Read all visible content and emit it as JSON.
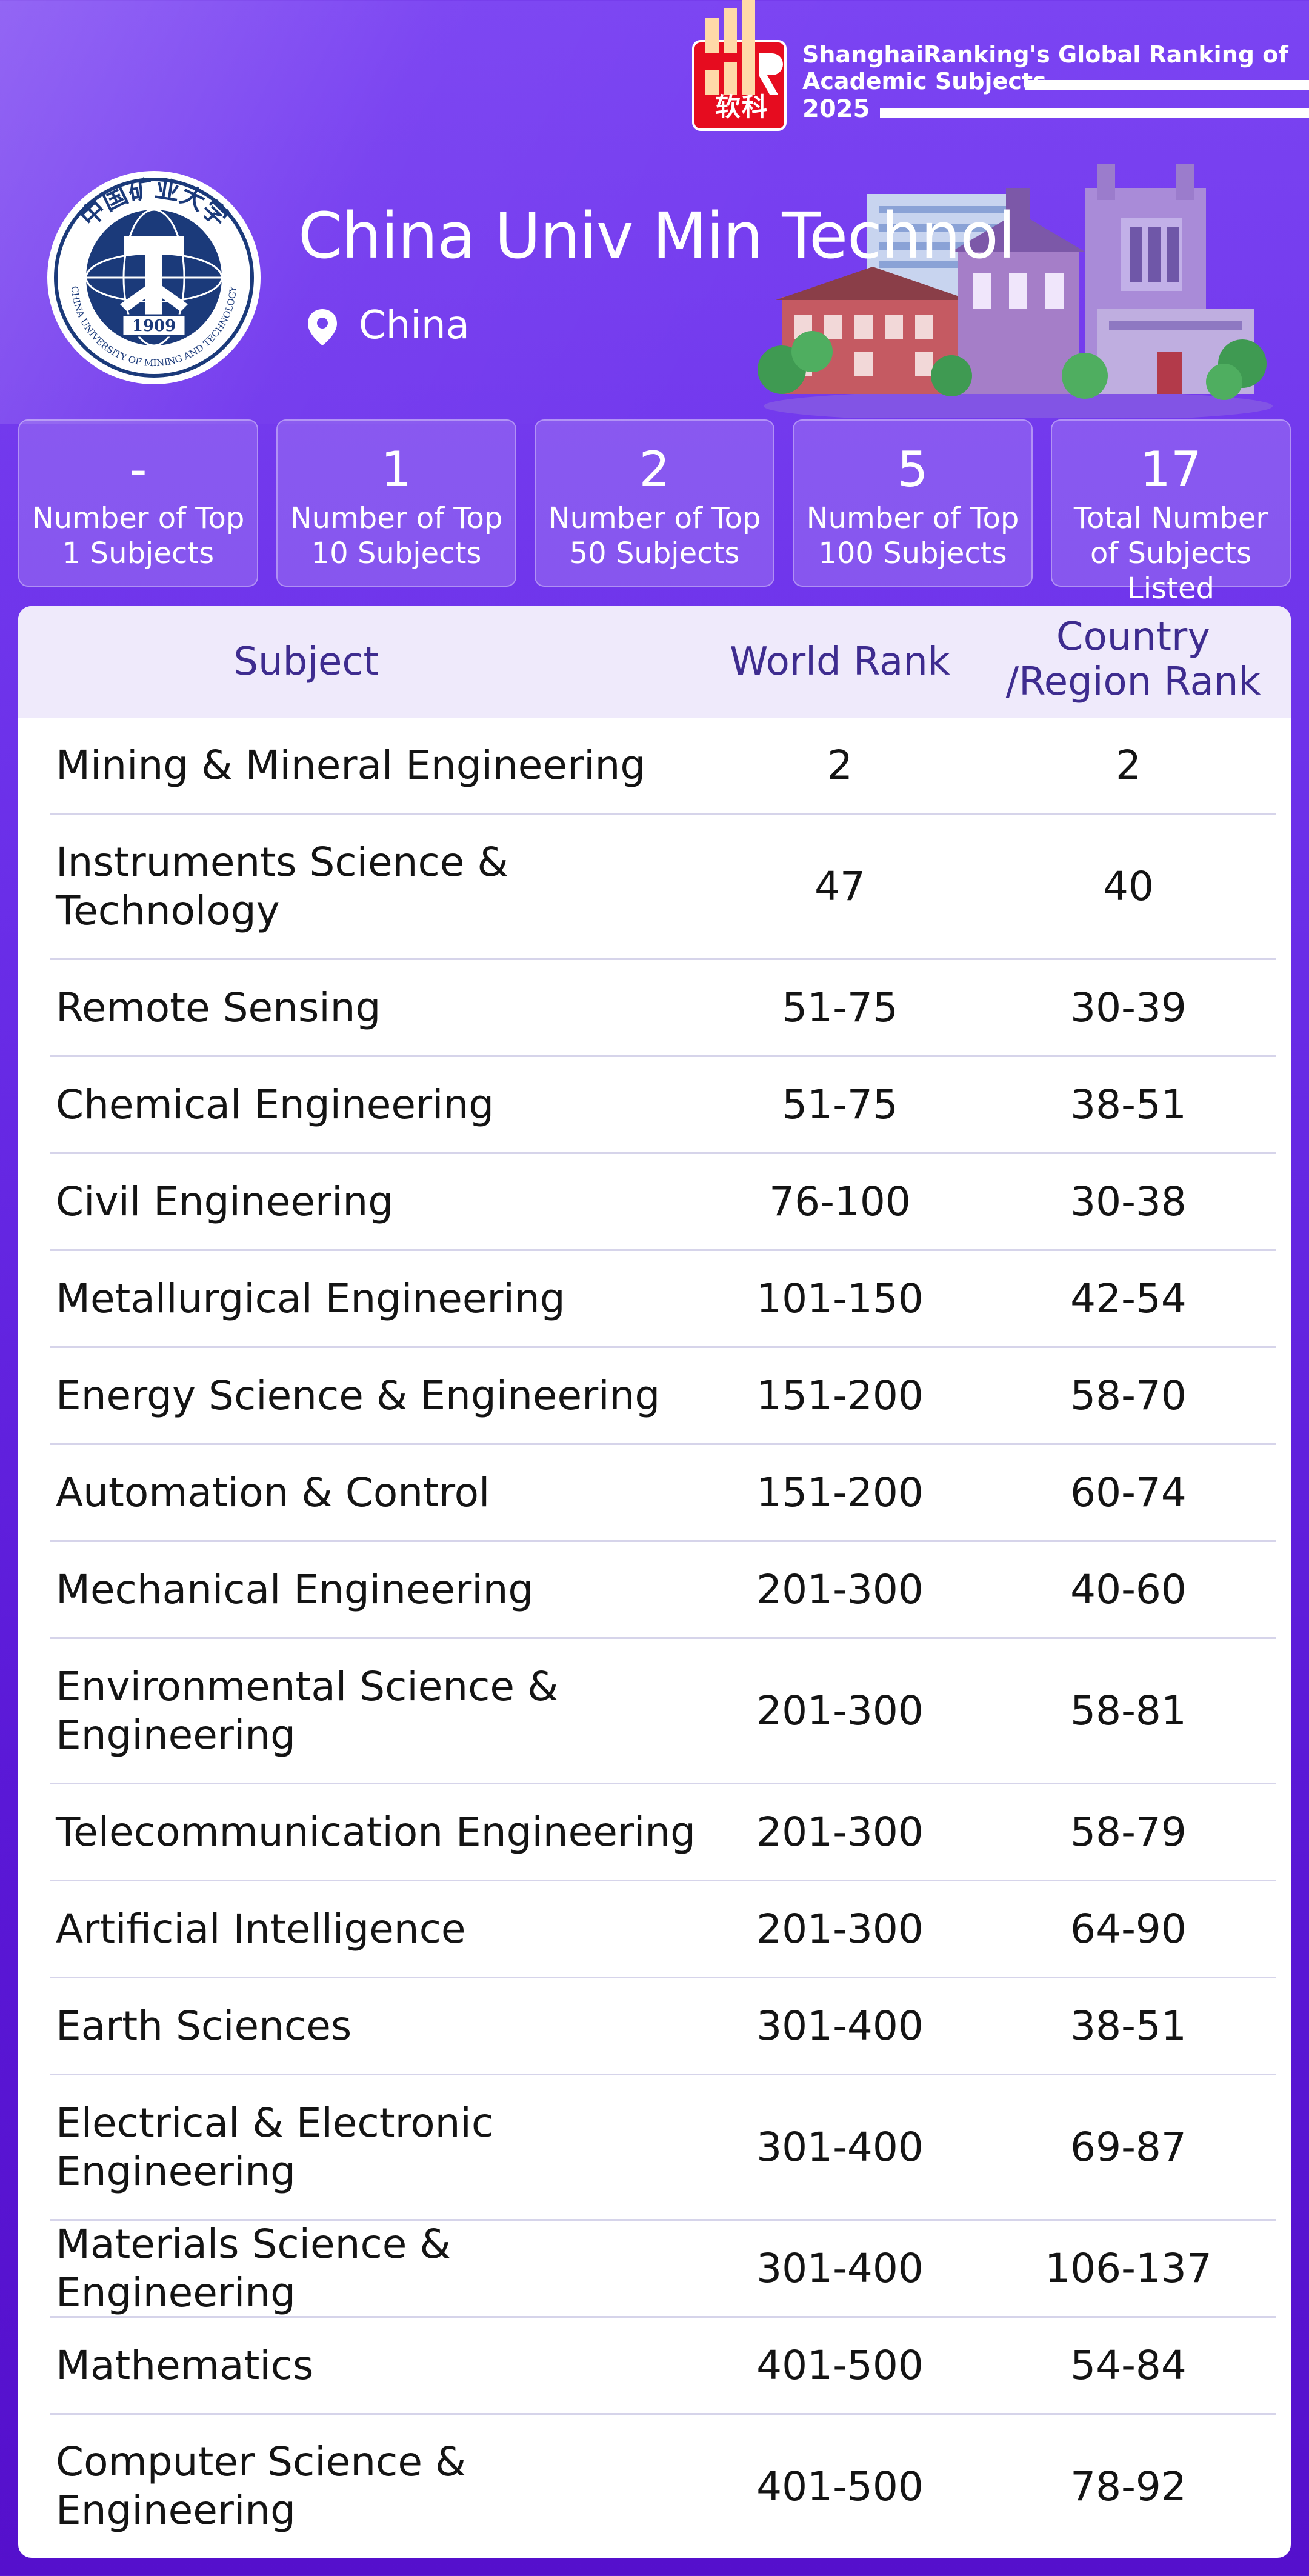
{
  "brand": {
    "logo_text": "软科",
    "line1": "ShanghaiRanking's Global Ranking of",
    "line2": "Academic Subjects",
    "year": "2025"
  },
  "university": {
    "name": "China Univ Min Technol",
    "location": "China",
    "seal_text_top": "中国矿业大学",
    "seal_text_bottom": "CHINA UNIVERSITY OF MINING AND TECHNOLOGY",
    "seal_year": "1909"
  },
  "stats": [
    {
      "value": "-",
      "label": "Number of Top 1 Subjects"
    },
    {
      "value": "1",
      "label": "Number of Top 10 Subjects"
    },
    {
      "value": "2",
      "label": "Number of Top 50 Subjects"
    },
    {
      "value": "5",
      "label": "Number of Top 100 Subjects"
    },
    {
      "value": "17",
      "label": "Total Number of Subjects Listed"
    }
  ],
  "table": {
    "headers": {
      "subject": "Subject",
      "world": "World Rank",
      "country": "Country /Region Rank"
    },
    "rows": [
      {
        "subject": "Mining & Mineral Engineering",
        "world": "2",
        "country": "2"
      },
      {
        "subject": "Instruments Science & Technology",
        "world": "47",
        "country": "40"
      },
      {
        "subject": "Remote Sensing",
        "world": "51-75",
        "country": "30-39"
      },
      {
        "subject": "Chemical Engineering",
        "world": "51-75",
        "country": "38-51"
      },
      {
        "subject": "Civil Engineering",
        "world": "76-100",
        "country": "30-38"
      },
      {
        "subject": "Metallurgical Engineering",
        "world": "101-150",
        "country": "42-54"
      },
      {
        "subject": "Energy Science & Engineering",
        "world": "151-200",
        "country": "58-70"
      },
      {
        "subject": "Automation & Control",
        "world": "151-200",
        "country": "60-74"
      },
      {
        "subject": "Mechanical Engineering",
        "world": "201-300",
        "country": "40-60"
      },
      {
        "subject": "Environmental Science & Engineering",
        "world": "201-300",
        "country": "58-81"
      },
      {
        "subject": "Telecommunication Engineering",
        "world": "201-300",
        "country": "58-79"
      },
      {
        "subject": "Artificial Intelligence",
        "world": "201-300",
        "country": "64-90"
      },
      {
        "subject": "Earth Sciences",
        "world": "301-400",
        "country": "38-51"
      },
      {
        "subject": "Electrical & Electronic Engineering",
        "world": "301-400",
        "country": "69-87"
      },
      {
        "subject": "Materials Science & Engineering",
        "world": "301-400",
        "country": "106-137"
      },
      {
        "subject": "Mathematics",
        "world": "401-500",
        "country": "54-84"
      },
      {
        "subject": "Computer Science & Engineering",
        "world": "401-500",
        "country": "78-92"
      }
    ]
  }
}
